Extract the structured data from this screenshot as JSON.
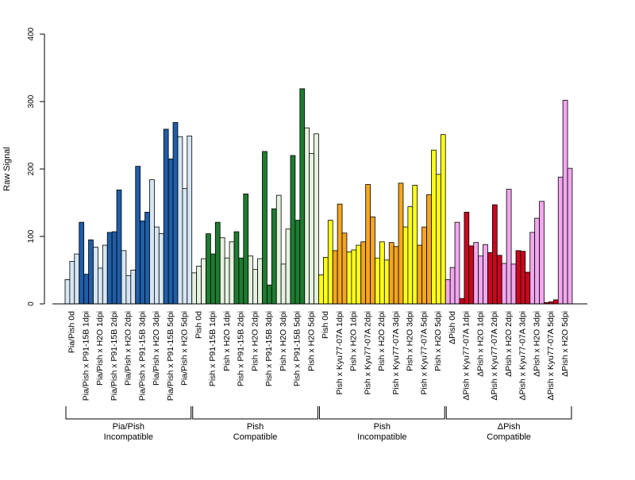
{
  "chart_data": {
    "type": "bar",
    "ylabel": "Raw Signal",
    "ylim": [
      0,
      400
    ],
    "yticks": [
      0,
      100,
      200,
      300,
      400
    ],
    "grid": false,
    "bars_per_group": 3,
    "groups": [
      {
        "label": "Pia/Pish 0d",
        "color": "#d6e6f4",
        "values": [
          36,
          63,
          74
        ]
      },
      {
        "label": "Pia/Pish x P91-15B 1dpi",
        "color": "#1f5ea8",
        "values": [
          121,
          44,
          95
        ]
      },
      {
        "label": "Pia/Pish x H2O 1dpi",
        "color": "#d6e6f4",
        "values": [
          84,
          53,
          87
        ]
      },
      {
        "label": "Pia/Pish x P91-15B 2dpi",
        "color": "#1f5ea8",
        "values": [
          106,
          107,
          169
        ]
      },
      {
        "label": "Pia/Pish x H2O 2dpi",
        "color": "#d6e6f4",
        "values": [
          79,
          42,
          50
        ]
      },
      {
        "label": "Pia/Pish x P91-15B 3dpi",
        "color": "#1f5ea8",
        "values": [
          204,
          123,
          136
        ]
      },
      {
        "label": "Pia/Pish x H2O 3dpi",
        "color": "#d6e6f4",
        "values": [
          184,
          114,
          104
        ]
      },
      {
        "label": "Pia/Pish x P91-15B 5dpi",
        "color": "#1f5ea8",
        "values": [
          259,
          215,
          269
        ]
      },
      {
        "label": "Pia/Pish x H2O 5dpi",
        "color": "#d6e6f4",
        "values": [
          248,
          171,
          249
        ]
      },
      {
        "label": "Pish 0d",
        "color": "#e5f2df",
        "values": [
          46,
          56,
          67
        ]
      },
      {
        "label": "Pish x P91-15B 1dpi",
        "color": "#1e7b30",
        "values": [
          104,
          74,
          121
        ]
      },
      {
        "label": "Pish x H2O 1dpi",
        "color": "#e5f2df",
        "values": [
          98,
          68,
          92
        ]
      },
      {
        "label": "Pish x P91-15B 2dpi",
        "color": "#1e7b30",
        "values": [
          107,
          68,
          163
        ]
      },
      {
        "label": "Pish x H2O 2dpi",
        "color": "#e5f2df",
        "values": [
          71,
          51,
          67
        ]
      },
      {
        "label": "Pish x P91-15B 3dpi",
        "color": "#1e7b30",
        "values": [
          226,
          28,
          141
        ]
      },
      {
        "label": "Pish x H2O 3dpi",
        "color": "#e5f2df",
        "values": [
          161,
          59,
          111
        ]
      },
      {
        "label": "Pish x P91-15B 5dpi",
        "color": "#1e7b30",
        "values": [
          220,
          124,
          319
        ]
      },
      {
        "label": "Pish x H2O 5dpi",
        "color": "#e5f2df",
        "values": [
          261,
          223,
          252
        ]
      },
      {
        "label": "Pish 0d",
        "color": "#ffff1a",
        "values": [
          43,
          69,
          124
        ]
      },
      {
        "label": "Pish x Kyu77-07A 1dpi",
        "color": "#f5a51e",
        "values": [
          79,
          148,
          105
        ]
      },
      {
        "label": "Pish x H2O 1dpi",
        "color": "#ffff1a",
        "values": [
          77,
          80,
          87
        ]
      },
      {
        "label": "Pish x Kyu77-07A 2dpi",
        "color": "#f5a51e",
        "values": [
          92,
          177,
          129
        ]
      },
      {
        "label": "Pish x H2O 2dpi",
        "color": "#ffff1a",
        "values": [
          68,
          92,
          65
        ]
      },
      {
        "label": "Pish x Kyu77-07A 3dpi",
        "color": "#f5a51e",
        "values": [
          91,
          85,
          179
        ]
      },
      {
        "label": "Pish x H2O 3dpi",
        "color": "#ffff1a",
        "values": [
          114,
          144,
          176
        ]
      },
      {
        "label": "Pish x Kyu77-07A 5dpi",
        "color": "#f5a51e",
        "values": [
          87,
          114,
          162
        ]
      },
      {
        "label": "Pish x H2O 5dpi",
        "color": "#ffff1a",
        "values": [
          228,
          192,
          251
        ]
      },
      {
        "label": "ΔPish 0d",
        "color": "#f2a7ee",
        "values": [
          36,
          54,
          121
        ]
      },
      {
        "label": "ΔPish x Kyu77-07A 1dpi",
        "color": "#c8071e",
        "values": [
          8,
          136,
          86
        ]
      },
      {
        "label": "ΔPish x H2O 1dpi",
        "color": "#f2a7ee",
        "values": [
          91,
          71,
          88
        ]
      },
      {
        "label": "ΔPish x Kyu77-07A 2dpi",
        "color": "#c8071e",
        "values": [
          76,
          147,
          72
        ]
      },
      {
        "label": "ΔPish x H2O 2dpi",
        "color": "#f2a7ee",
        "values": [
          60,
          170,
          59
        ]
      },
      {
        "label": "ΔPish x Kyu77-07A 3dpi",
        "color": "#c8071e",
        "values": [
          79,
          78,
          47
        ]
      },
      {
        "label": "ΔPish x H2O 3dpi",
        "color": "#f2a7ee",
        "values": [
          106,
          127,
          152
        ]
      },
      {
        "label": "ΔPish x Kyu77-07A 5dpi",
        "color": "#c8071e",
        "values": [
          2,
          3,
          6
        ]
      },
      {
        "label": "ΔPish x H2O 5dpi",
        "color": "#f2a7ee",
        "values": [
          188,
          302,
          201
        ]
      }
    ],
    "sections": [
      {
        "line1": "Pia/Pish",
        "line2": "Incompatible"
      },
      {
        "line1": "Pish",
        "line2": "Compatible"
      },
      {
        "line1": "Pish",
        "line2": "Incompatible"
      },
      {
        "line1": "ΔPish",
        "line2": "Compatible"
      }
    ]
  }
}
